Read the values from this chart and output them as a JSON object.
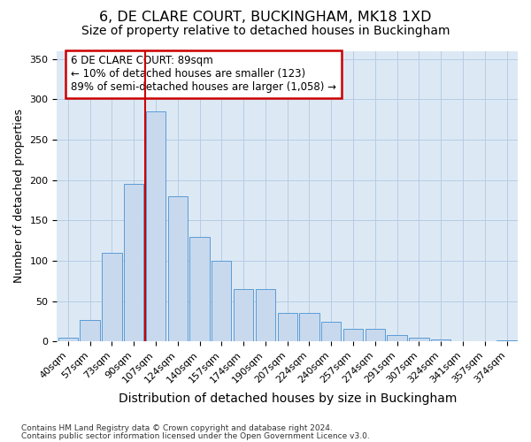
{
  "title": "6, DE CLARE COURT, BUCKINGHAM, MK18 1XD",
  "subtitle": "Size of property relative to detached houses in Buckingham",
  "xlabel": "Distribution of detached houses by size in Buckingham",
  "ylabel": "Number of detached properties",
  "footer1": "Contains HM Land Registry data © Crown copyright and database right 2024.",
  "footer2": "Contains public sector information licensed under the Open Government Licence v3.0.",
  "bar_labels": [
    "40sqm",
    "57sqm",
    "73sqm",
    "90sqm",
    "107sqm",
    "124sqm",
    "140sqm",
    "157sqm",
    "174sqm",
    "190sqm",
    "207sqm",
    "224sqm",
    "240sqm",
    "257sqm",
    "274sqm",
    "291sqm",
    "307sqm",
    "324sqm",
    "341sqm",
    "357sqm",
    "374sqm"
  ],
  "bar_values": [
    5,
    27,
    110,
    195,
    285,
    180,
    130,
    100,
    65,
    65,
    35,
    35,
    25,
    16,
    16,
    8,
    5,
    3,
    0,
    1,
    2
  ],
  "bar_color": "#c8d9ee",
  "bar_edge_color": "#5b9bd5",
  "vline_x": 3.5,
  "vline_color": "#cc0000",
  "annotation_text": "6 DE CLARE COURT: 89sqm\n← 10% of detached houses are smaller (123)\n89% of semi-detached houses are larger (1,058) →",
  "annotation_box_color": "#cc0000",
  "ylim": [
    0,
    360
  ],
  "yticks": [
    0,
    50,
    100,
    150,
    200,
    250,
    300,
    350
  ],
  "grid_color": "#b8cce4",
  "bg_color": "#dce9f5",
  "title_fontsize": 11.5,
  "subtitle_fontsize": 10,
  "xlabel_fontsize": 10,
  "ylabel_fontsize": 9,
  "tick_fontsize": 8,
  "annotation_fontsize": 8.5,
  "footer_fontsize": 6.5
}
